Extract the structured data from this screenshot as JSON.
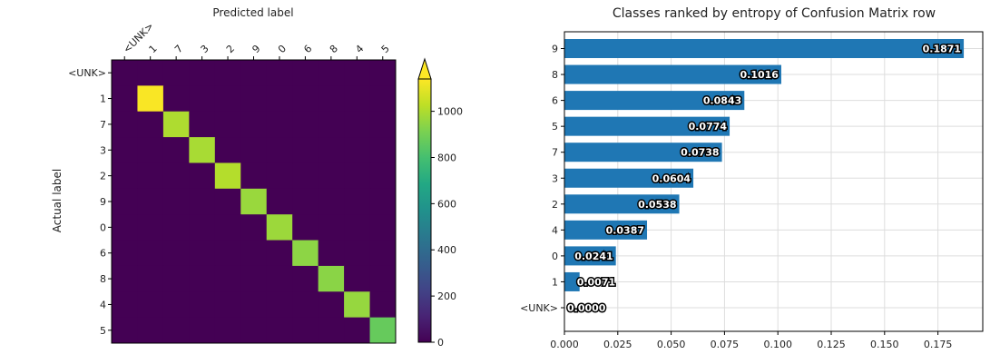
{
  "chart_data": [
    {
      "type": "heatmap",
      "title": "",
      "xlabel": "Predicted label",
      "ylabel": "Actual label",
      "x_tick_labels": [
        "<UNK>",
        "1",
        "7",
        "3",
        "2",
        "9",
        "0",
        "6",
        "8",
        "4",
        "5"
      ],
      "y_tick_labels": [
        "<UNK>",
        "1",
        "7",
        "3",
        "2",
        "9",
        "0",
        "6",
        "8",
        "4",
        "5"
      ],
      "matrix": [
        [
          0,
          0,
          0,
          0,
          0,
          0,
          0,
          0,
          0,
          0,
          0
        ],
        [
          0,
          1132,
          0,
          0,
          0,
          0,
          0,
          0,
          0,
          0,
          0
        ],
        [
          0,
          0,
          1000,
          0,
          0,
          0,
          0,
          0,
          0,
          0,
          0
        ],
        [
          0,
          0,
          0,
          990,
          0,
          0,
          0,
          0,
          0,
          0,
          0
        ],
        [
          0,
          0,
          0,
          0,
          1010,
          0,
          0,
          0,
          0,
          0,
          0
        ],
        [
          0,
          0,
          0,
          0,
          0,
          965,
          0,
          0,
          0,
          0,
          0
        ],
        [
          0,
          0,
          0,
          0,
          0,
          0,
          970,
          0,
          0,
          0,
          0
        ],
        [
          0,
          0,
          0,
          0,
          0,
          0,
          0,
          945,
          0,
          0,
          0
        ],
        [
          0,
          0,
          0,
          0,
          0,
          0,
          0,
          0,
          940,
          0,
          0
        ],
        [
          0,
          0,
          0,
          0,
          0,
          0,
          0,
          0,
          0,
          960,
          0
        ],
        [
          0,
          0,
          0,
          0,
          0,
          0,
          0,
          0,
          0,
          0,
          870
        ]
      ],
      "colormap": "viridis",
      "colorbar": {
        "range": [
          0,
          1140
        ],
        "ticks": [
          0,
          200,
          400,
          600,
          800,
          1000
        ],
        "tick_labels": [
          "0",
          "200",
          "400",
          "600",
          "800",
          "1000"
        ],
        "extend": "max"
      }
    },
    {
      "type": "bar",
      "orientation": "horizontal",
      "title": "Classes ranked by entropy of Confusion Matrix row",
      "xlabel": "",
      "ylabel": "",
      "categories": [
        "9",
        "8",
        "6",
        "5",
        "7",
        "3",
        "2",
        "4",
        "0",
        "1",
        "<UNK>"
      ],
      "values": [
        0.1871,
        0.1016,
        0.0843,
        0.0774,
        0.0738,
        0.0604,
        0.0538,
        0.0387,
        0.0241,
        0.0071,
        0.0
      ],
      "value_labels": [
        "0.1871",
        "0.1016",
        "0.0843",
        "0.0774",
        "0.0738",
        "0.0604",
        "0.0538",
        "0.0387",
        "0.0241",
        "0.0071",
        "0.0000"
      ],
      "xlim": [
        0,
        0.196
      ],
      "x_ticks": [
        0,
        0.025,
        0.05,
        0.075,
        0.1,
        0.125,
        0.15,
        0.175
      ],
      "x_tick_labels": [
        "0.000",
        "0.025",
        "0.050",
        "0.075",
        "0.100",
        "0.125",
        "0.150",
        "0.175"
      ],
      "grid": true,
      "bar_color": "#1f77b4"
    }
  ]
}
